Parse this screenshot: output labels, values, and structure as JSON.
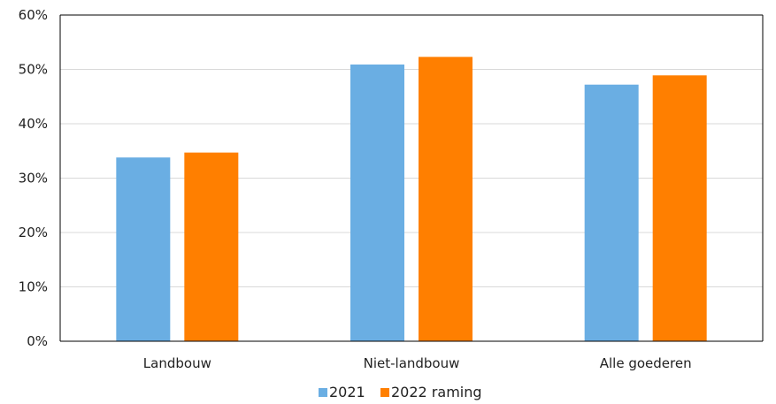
{
  "chart_data": {
    "type": "bar",
    "categories": [
      "Landbouw",
      "Niet-landbouw",
      "Alle goederen"
    ],
    "series": [
      {
        "name": "2021",
        "values": [
          33.8,
          50.9,
          47.2
        ],
        "color": "#6aaee3"
      },
      {
        "name": "2022 raming",
        "values": [
          34.7,
          52.3,
          48.9
        ],
        "color": "#ff7f00"
      }
    ],
    "ylim": [
      0,
      60
    ],
    "yticks": [
      "0%",
      "10%",
      "20%",
      "30%",
      "40%",
      "50%",
      "60%"
    ],
    "grid": true,
    "legend_position": "bottom"
  }
}
